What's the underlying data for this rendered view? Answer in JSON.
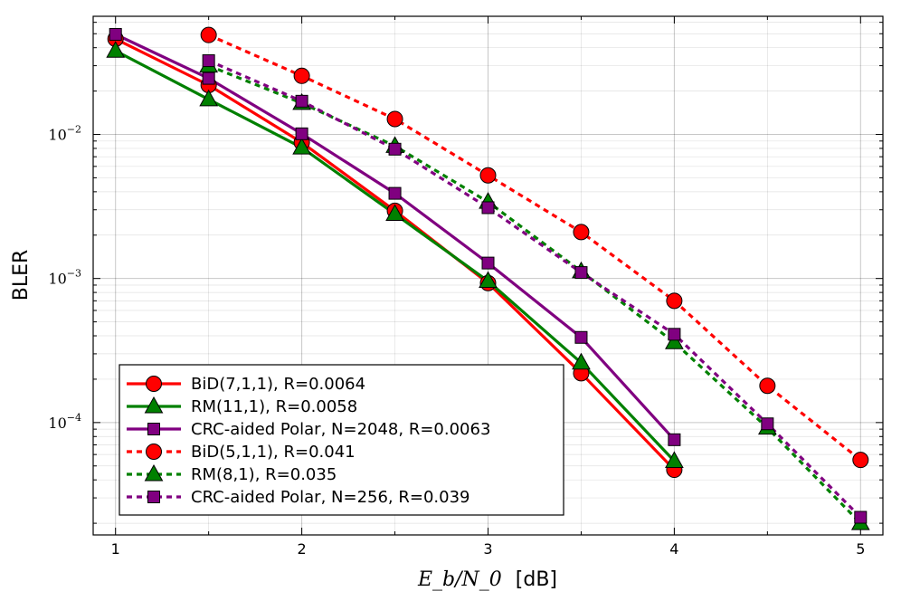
{
  "chart_data": {
    "type": "line",
    "title": "",
    "xlabel_math": "E_b/N_0",
    "xlabel_unit": "[dB]",
    "ylabel": "BLER",
    "xlim": [
      0.88,
      5.12
    ],
    "ylim_log10": [
      -4.78,
      -1.18
    ],
    "xscale": "linear",
    "yscale": "log",
    "grid": true,
    "legend_position": "bottom-left",
    "x_ticks": [
      "1",
      "2",
      "3",
      "4",
      "5"
    ],
    "y_ticks": [
      {
        "base": "10",
        "exp": "−2",
        "value": 0.01
      },
      {
        "base": "10",
        "exp": "−3",
        "value": 0.001
      },
      {
        "base": "10",
        "exp": "−4",
        "value": 0.0001
      }
    ],
    "series": [
      {
        "name": "BiD(7,1,1), R=0.0064",
        "color": "#ff0000",
        "style": "solid",
        "marker": "circle",
        "x": [
          1,
          1.5,
          2,
          2.5,
          3,
          3.5,
          4
        ],
        "y": [
          0.046,
          0.022,
          0.0088,
          0.00295,
          0.00093,
          0.00022,
          4.7e-05
        ]
      },
      {
        "name": "RM(11,1), R=0.0058",
        "color": "#008000",
        "style": "solid",
        "marker": "triangle",
        "x": [
          1,
          1.5,
          2,
          2.5,
          3,
          3.5,
          4
        ],
        "y": [
          0.038,
          0.0175,
          0.0081,
          0.0028,
          0.00096,
          0.00026,
          5.4e-05
        ]
      },
      {
        "name": "CRC-aided Polar, N=2048, R=0.0063",
        "color": "#800080",
        "style": "solid",
        "marker": "square",
        "x": [
          1,
          1.5,
          2,
          2.5,
          3,
          3.5,
          4
        ],
        "y": [
          0.0495,
          0.0245,
          0.0101,
          0.0039,
          0.00128,
          0.00039,
          7.6e-05
        ]
      },
      {
        "name": "BiD(5,1,1), R=0.041",
        "color": "#ff0000",
        "style": "dashed",
        "marker": "circle",
        "x": [
          1.5,
          2,
          2.5,
          3,
          3.5,
          4,
          4.5,
          5
        ],
        "y": [
          0.049,
          0.0255,
          0.0128,
          0.0052,
          0.0021,
          0.0007,
          0.00018,
          5.5e-05
        ]
      },
      {
        "name": "RM(8,1), R=0.035",
        "color": "#008000",
        "style": "dashed",
        "marker": "triangle",
        "x": [
          1.5,
          2,
          2.5,
          3,
          3.5,
          4,
          4.5,
          5
        ],
        "y": [
          0.03,
          0.0165,
          0.0083,
          0.0034,
          0.00112,
          0.00036,
          9.2e-05,
          2e-05
        ]
      },
      {
        "name": "CRC-aided Polar, N=256, R=0.039",
        "color": "#800080",
        "style": "dashed",
        "marker": "square",
        "x": [
          1.5,
          2,
          2.5,
          3,
          3.5,
          4,
          4.5,
          5
        ],
        "y": [
          0.0325,
          0.017,
          0.0079,
          0.0031,
          0.0011,
          0.00041,
          9.8e-05,
          2.2e-05
        ]
      }
    ]
  }
}
